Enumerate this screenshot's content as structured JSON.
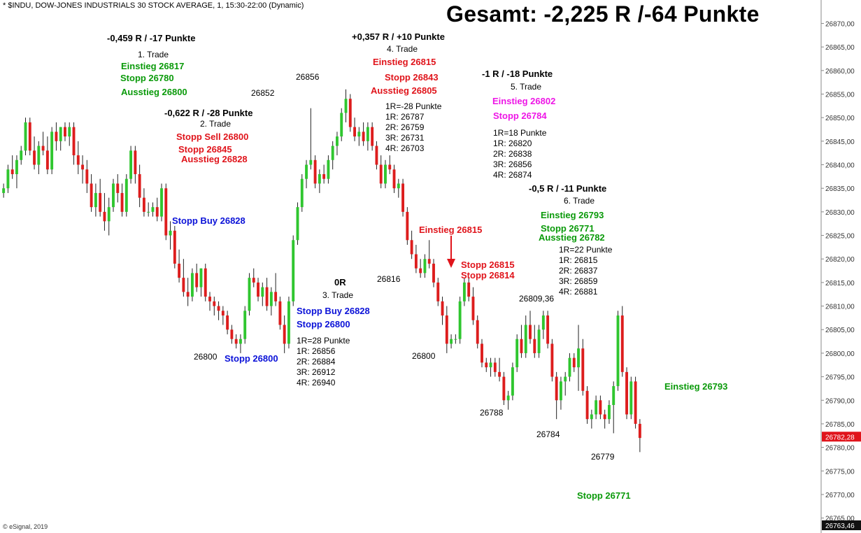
{
  "header": "* $INDU, DOW-JONES INDUSTRIALS 30 STOCK AVERAGE, 1, 15:30-22:00 (Dynamic)",
  "big_title": "Gesamt: -2,225 R /-64 Punkte",
  "copyright": "© eSignal, 2019",
  "colors": {
    "up": "#2fc62f",
    "down": "#dd1d1d",
    "wick": "#222222",
    "axis": "#888888",
    "price_tag": "#e0141b"
  },
  "chart_data": {
    "type": "candlestick",
    "title": "",
    "ylim": [
      26763.46,
      26872
    ],
    "y_ticks": [
      "26870,00",
      "26865,00",
      "26860,00",
      "26855,00",
      "26850,00",
      "26845,00",
      "26840,00",
      "26835,00",
      "26830,00",
      "26825,00",
      "26820,00",
      "26815,00",
      "26810,00",
      "26805,00",
      "26800,00",
      "26795,00",
      "26790,00",
      "26785,00",
      "26780,00",
      "26775,00",
      "26770,00",
      "26765,00"
    ],
    "y_tick_values": [
      26870,
      26865,
      26860,
      26855,
      26850,
      26845,
      26840,
      26835,
      26830,
      26825,
      26820,
      26815,
      26810,
      26805,
      26800,
      26795,
      26790,
      26785,
      26780,
      26775,
      26770,
      26765
    ],
    "last_price_label": "26782,28",
    "last_price": 26782.28,
    "bottom_price_label": "26763,46",
    "bottom_price": 26763.46,
    "candles": [
      [
        26834,
        26836,
        26833,
        26835
      ],
      [
        26835,
        26840,
        26834,
        26839
      ],
      [
        26839,
        26842,
        26837,
        26838
      ],
      [
        26838,
        26842,
        26835,
        26841
      ],
      [
        26841,
        26844,
        26840,
        26843
      ],
      [
        26843,
        26850,
        26842,
        26849
      ],
      [
        26849,
        26850,
        26842,
        26843
      ],
      [
        26843,
        26846,
        26839,
        26840
      ],
      [
        26840,
        26845,
        26838,
        26844
      ],
      [
        26844,
        26847,
        26842,
        26843
      ],
      [
        26843,
        26846,
        26838,
        26839
      ],
      [
        26839,
        26848,
        26838,
        26847
      ],
      [
        26847,
        26849,
        26843,
        26845
      ],
      [
        26845,
        26848,
        26843,
        26848
      ],
      [
        26848,
        26849,
        26845,
        26846
      ],
      [
        26846,
        26849,
        26844,
        26848
      ],
      [
        26848,
        26849,
        26840,
        26842
      ],
      [
        26842,
        26845,
        26838,
        26840
      ],
      [
        26840,
        26842,
        26836,
        26839
      ],
      [
        26839,
        26841,
        26834,
        26836
      ],
      [
        26836,
        26838,
        26830,
        26831
      ],
      [
        26831,
        26836,
        26829,
        26834
      ],
      [
        26834,
        26837,
        26829,
        26830
      ],
      [
        26830,
        26834,
        26826,
        26828
      ],
      [
        26828,
        26833,
        26825,
        26831
      ],
      [
        26831,
        26837,
        26830,
        26836
      ],
      [
        26836,
        26838,
        26832,
        26834
      ],
      [
        26834,
        26836,
        26829,
        26830
      ],
      [
        26830,
        26838,
        26829,
        26837
      ],
      [
        26837,
        26844,
        26836,
        26843
      ],
      [
        26843,
        26844,
        26836,
        26838
      ],
      [
        26838,
        26840,
        26831,
        26833
      ],
      [
        26833,
        26835,
        26829,
        26830
      ],
      [
        26830,
        26832,
        26829,
        26830
      ],
      [
        26830,
        26832,
        26829,
        26831
      ],
      [
        26831,
        26833,
        26828,
        26829
      ],
      [
        26829,
        26836,
        26828,
        26835
      ],
      [
        26835,
        26836,
        26824,
        26825
      ],
      [
        26825,
        26828,
        26822,
        26826
      ],
      [
        26826,
        26827,
        26818,
        26819
      ],
      [
        26819,
        26822,
        26815,
        26816
      ],
      [
        26816,
        26820,
        26812,
        26813
      ],
      [
        26813,
        26816,
        26810,
        26812
      ],
      [
        26812,
        26818,
        26811,
        26817
      ],
      [
        26817,
        26819,
        26813,
        26814
      ],
      [
        26814,
        26818,
        26812,
        26818
      ],
      [
        26818,
        26819,
        26811,
        26812
      ],
      [
        26812,
        26813,
        26809,
        26811
      ],
      [
        26811,
        26812,
        26808,
        26810
      ],
      [
        26810,
        26811,
        26807,
        26809
      ],
      [
        26809,
        26810,
        26806,
        26808
      ],
      [
        26808,
        26809,
        26804,
        26805
      ],
      [
        26805,
        26806,
        26802,
        26803
      ],
      [
        26803,
        26804,
        26801,
        26802
      ],
      [
        26802,
        26804,
        26800,
        26803
      ],
      [
        26803,
        26810,
        26802,
        26809
      ],
      [
        26809,
        26817,
        26808,
        26816
      ],
      [
        26816,
        26818,
        26814,
        26815
      ],
      [
        26815,
        26816,
        26811,
        26812
      ],
      [
        26812,
        26815,
        26810,
        26814
      ],
      [
        26814,
        26816,
        26809,
        26810
      ],
      [
        26810,
        26814,
        26808,
        26813
      ],
      [
        26813,
        26817,
        26810,
        26811
      ],
      [
        26811,
        26812,
        26805,
        26806
      ],
      [
        26806,
        26808,
        26800,
        26802
      ],
      [
        26802,
        26812,
        26801,
        26811
      ],
      [
        26811,
        26825,
        26810,
        26824
      ],
      [
        26824,
        26832,
        26823,
        26831
      ],
      [
        26831,
        26838,
        26830,
        26837
      ],
      [
        26837,
        26841,
        26835,
        26840
      ],
      [
        26840,
        26852,
        26839,
        26841
      ],
      [
        26841,
        26842,
        26835,
        26836
      ],
      [
        26836,
        26839,
        26834,
        26838
      ],
      [
        26838,
        26840,
        26836,
        26837
      ],
      [
        26837,
        26842,
        26836,
        26841
      ],
      [
        26841,
        26845,
        26839,
        26844
      ],
      [
        26844,
        26847,
        26842,
        26846
      ],
      [
        26846,
        26852,
        26845,
        26851
      ],
      [
        26851,
        26856,
        26849,
        26854
      ],
      [
        26854,
        26855,
        26847,
        26848
      ],
      [
        26848,
        26850,
        26845,
        26846
      ],
      [
        26846,
        26848,
        26844,
        26847
      ],
      [
        26847,
        26849,
        26844,
        26845
      ],
      [
        26845,
        26849,
        26843,
        26848
      ],
      [
        26848,
        26849,
        26843,
        26844
      ],
      [
        26844,
        26845,
        26839,
        26840
      ],
      [
        26840,
        26842,
        26835,
        26836
      ],
      [
        26836,
        26841,
        26835,
        26840
      ],
      [
        26840,
        26842,
        26838,
        26839
      ],
      [
        26839,
        26840,
        26834,
        26835
      ],
      [
        26835,
        26837,
        26833,
        26836
      ],
      [
        26836,
        26837,
        26829,
        26830
      ],
      [
        26830,
        26831,
        26823,
        26824
      ],
      [
        26824,
        26826,
        26820,
        26821
      ],
      [
        26821,
        26823,
        26817,
        26818
      ],
      [
        26818,
        26820,
        26816,
        26817
      ],
      [
        26817,
        26821,
        26816,
        26820
      ],
      [
        26820,
        26824,
        26818,
        26819
      ],
      [
        26819,
        26820,
        26814,
        26815
      ],
      [
        26815,
        26816,
        26810,
        26811
      ],
      [
        26811,
        26812,
        26806,
        26808
      ],
      [
        26808,
        26810,
        26800,
        26802
      ],
      [
        26802,
        26804,
        26801,
        26803
      ],
      [
        26803,
        26804,
        26802,
        26803
      ],
      [
        26803,
        26812,
        26802,
        26811
      ],
      [
        26811,
        26816,
        26810,
        26815
      ],
      [
        26815,
        26816,
        26811,
        26812
      ],
      [
        26812,
        26814,
        26806,
        26807
      ],
      [
        26807,
        26808,
        26801,
        26802
      ],
      [
        26802,
        26803,
        26797,
        26798
      ],
      [
        26798,
        26799,
        26796,
        26797
      ],
      [
        26797,
        26799,
        26795,
        26798
      ],
      [
        26798,
        26799,
        26795,
        26796
      ],
      [
        26796,
        26799,
        26794,
        26795
      ],
      [
        26795,
        26796,
        26789,
        26790
      ],
      [
        26790,
        26792,
        26788,
        26791
      ],
      [
        26791,
        26798,
        26790,
        26797
      ],
      [
        26797,
        26804,
        26796,
        26803
      ],
      [
        26803,
        26806,
        26799,
        26800
      ],
      [
        26800,
        26808,
        26799,
        26806
      ],
      [
        26806,
        26809,
        26802,
        26803
      ],
      [
        26803,
        26806,
        26799,
        26800
      ],
      [
        26800,
        26806,
        26799,
        26805
      ],
      [
        26805,
        26809,
        26803,
        26808
      ],
      [
        26808,
        26809,
        26801,
        26802
      ],
      [
        26802,
        26803,
        26794,
        26795
      ],
      [
        26795,
        26796,
        26786,
        26790
      ],
      [
        26790,
        26795,
        26788,
        26794
      ],
      [
        26794,
        26796,
        26791,
        26795
      ],
      [
        26795,
        26800,
        26794,
        26799
      ],
      [
        26799,
        26800,
        26796,
        26797
      ],
      [
        26797,
        26806,
        26792,
        26801
      ],
      [
        26801,
        26803,
        26791,
        26792
      ],
      [
        26792,
        26793,
        26785,
        26786
      ],
      [
        26786,
        26788,
        26784,
        26787
      ],
      [
        26787,
        26791,
        26786,
        26790
      ],
      [
        26790,
        26791,
        26786,
        26787
      ],
      [
        26787,
        26788,
        26784,
        26786
      ],
      [
        26786,
        26790,
        26785,
        26789
      ],
      [
        26789,
        26794,
        26783,
        26793
      ],
      [
        26793,
        26809,
        26792,
        26808
      ],
      [
        26808,
        26810,
        26795,
        26796
      ],
      [
        26796,
        26797,
        26786,
        26787
      ],
      [
        26787,
        26795,
        26786,
        26794
      ],
      [
        26794,
        26795,
        26784,
        26785
      ],
      [
        26785,
        26786,
        26779,
        26782
      ]
    ]
  },
  "annotations": {
    "t1_result": "-0,459 R / -17 Punkte",
    "t1_title": "1. Trade",
    "t1_entry": "Einstieg 26817",
    "t1_stop": "Stopp 26780",
    "t1_exit": "Ausstieg 26800",
    "t2_result": "-0,622 R / -28 Punkte",
    "t2_title": "2. Trade",
    "t2_stop_sell": "Stopp Sell 26800",
    "t2_stop": "Stopp 26845",
    "t2_exit": "Ausstieg 26828",
    "stopp_buy_left": "Stopp Buy 26828",
    "stopp_left_bottom": "Stopp 26800",
    "t3_result": "0R",
    "t3_title": "3. Trade",
    "t3_stop_buy": "Stopp Buy 26828",
    "t3_stop": "Stopp 26800",
    "t3_levels": [
      "1R=28 Punkte",
      "1R: 26856",
      "2R: 26884",
      "3R: 26912",
      "4R: 26940"
    ],
    "t4_result": "+0,357 R / +10 Punkte",
    "t4_title": "4. Trade",
    "t4_entry": "Einstieg 26815",
    "t4_stop": "Stopp 26843",
    "t4_exit": "Ausstieg 26805",
    "t4_levels": [
      "1R=-28 Punkte",
      "1R: 26787",
      "2R: 26759",
      "3R: 26731",
      "4R: 26703"
    ],
    "t5_result": "-1 R / -18 Punkte",
    "t5_title": "5. Trade",
    "t5_entry": "Einstieg 26802",
    "t5_stop": "Stopp 26784",
    "t5_levels": [
      "1R=18 Punkte",
      "1R: 26820",
      "2R: 26838",
      "3R: 26856",
      "4R: 26874"
    ],
    "einstieg_mid": "Einstieg 26815",
    "stopp_mid_1": "Stopp 26815",
    "stopp_mid_2": "Stopp 26814",
    "t6_result": "-0,5 R / -11 Punkte",
    "t6_title": "6. Trade",
    "t6_entry": "Einstieg 26793",
    "t6_stop": "Stopp 26771",
    "t6_exit": "Ausstieg 26782",
    "t6_levels": [
      "1R=22 Punkte",
      "1R: 26815",
      "2R: 26837",
      "3R: 26859",
      "4R: 26881"
    ],
    "einstieg_right": "Einstieg 26793",
    "stopp_right_bottom": "Stopp 26771",
    "price_marks": [
      "26852",
      "26856",
      "26800",
      "26816",
      "26800",
      "26809,36",
      "26788",
      "26784",
      "26779"
    ]
  }
}
